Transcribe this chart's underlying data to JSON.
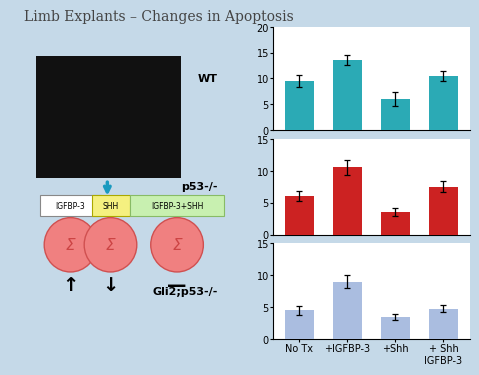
{
  "title": "Limb Explants – Changes in Apoptosis",
  "categories": [
    "No Tx",
    "+IGFBP-3",
    "+Shh",
    "+ Shh\nIGFBP-3"
  ],
  "wt_values": [
    9.5,
    13.5,
    6.0,
    10.5
  ],
  "wt_errors": [
    1.2,
    1.0,
    1.3,
    1.0
  ],
  "wt_label": "WT",
  "wt_color": "#2baab5",
  "p53_values": [
    6.0,
    10.5,
    3.5,
    7.5
  ],
  "p53_errors": [
    0.8,
    1.2,
    0.6,
    0.9
  ],
  "p53_label": "p53-/-",
  "p53_color": "#cc2222",
  "gli2_values": [
    4.5,
    9.0,
    3.5,
    4.8
  ],
  "gli2_errors": [
    0.7,
    1.0,
    0.5,
    0.6
  ],
  "gli2_label": "Gli2;p53-/-",
  "gli2_color": "#aabde0",
  "wt_ylim": [
    0,
    20
  ],
  "p53_ylim": [
    0,
    15
  ],
  "gli2_ylim": [
    0,
    15
  ],
  "wt_yticks": [
    0,
    5,
    10,
    15,
    20
  ],
  "p53_yticks": [
    0,
    5,
    10,
    15
  ],
  "gli2_yticks": [
    0,
    5,
    10,
    15
  ],
  "bg_color": "#c5d9e8",
  "title_color": "#444444",
  "tick_fontsize": 7,
  "label_fontsize": 8,
  "title_fontsize": 10,
  "circle_color": "#f08080",
  "circle_edge": "#d05050",
  "arrow_color": "#1a9abf",
  "box_igfbp_color": "white",
  "box_shh_color": "#f5f080",
  "box_igfbp_shh_color": "#c8f0b0",
  "diagram_labels": [
    "IGFBP-3",
    "SHH",
    "IGFBP-3+SHH"
  ],
  "arrow_symbols": [
    "↑",
    "↓",
    "—"
  ]
}
